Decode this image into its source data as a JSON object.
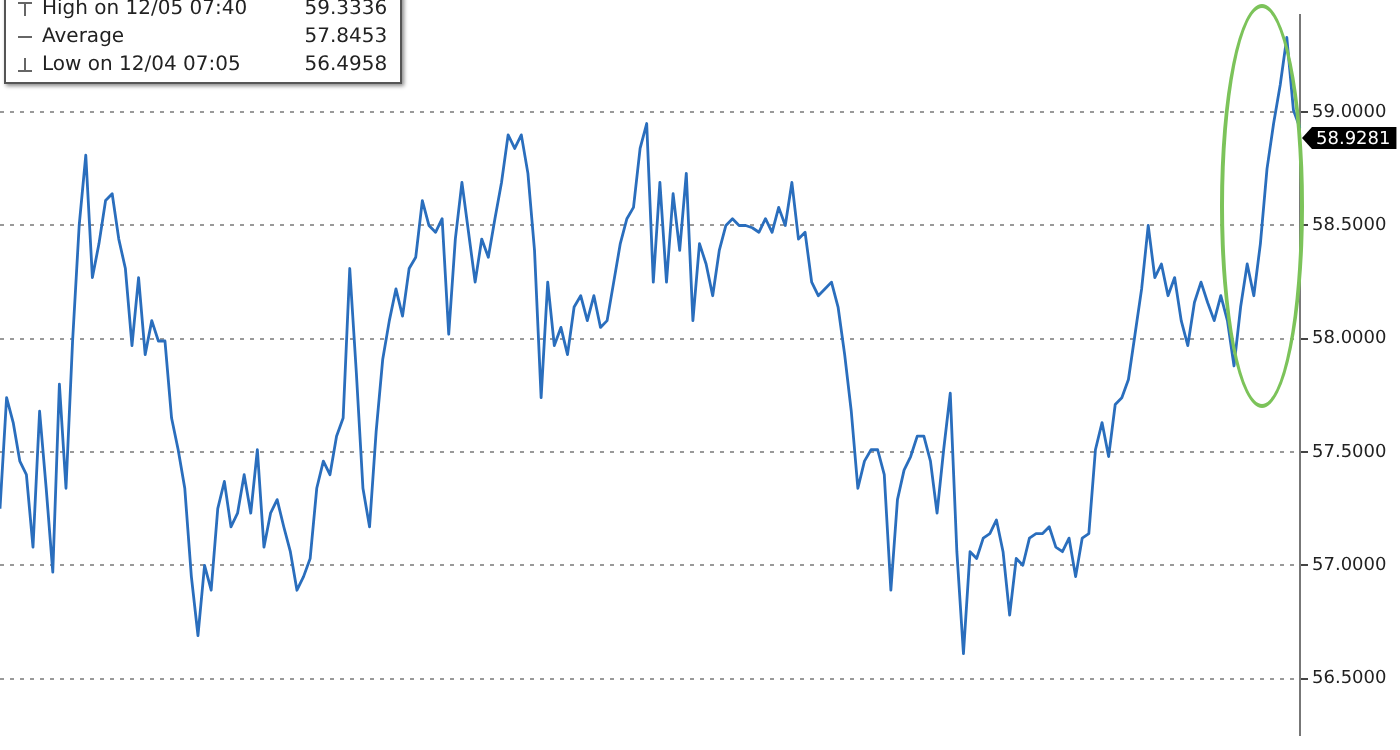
{
  "chart_data": {
    "type": "line",
    "categories": [
      null,
      null,
      null,
      null,
      null,
      null,
      null,
      null,
      null,
      null,
      null,
      null,
      null,
      null,
      null,
      null,
      null,
      null,
      null,
      null,
      null,
      null,
      null,
      null,
      null,
      null,
      null,
      null,
      null,
      null,
      null,
      null,
      null,
      null,
      null,
      null,
      null,
      null,
      null,
      null,
      null,
      null,
      null,
      null,
      null,
      null,
      null,
      null,
      null,
      null,
      null,
      null,
      null,
      null,
      null,
      null,
      null,
      null,
      null,
      null,
      null,
      null,
      null,
      null,
      null,
      null,
      null,
      null,
      null,
      null,
      null,
      null,
      null,
      null,
      null,
      null,
      null,
      null,
      null,
      null,
      null,
      null,
      null,
      null,
      null,
      null,
      null,
      null,
      null,
      null,
      null,
      null,
      null,
      null,
      null,
      null,
      null,
      null,
      null,
      null,
      null,
      null,
      null,
      null,
      null,
      null,
      null,
      null,
      null,
      null,
      null,
      null,
      null,
      null,
      null,
      null,
      null,
      null,
      null,
      null,
      null,
      null,
      null,
      null,
      null,
      null,
      null,
      null,
      null,
      null,
      null,
      null,
      null,
      null,
      null,
      null,
      null,
      null,
      null,
      null,
      null,
      null,
      null,
      null,
      null,
      null,
      null,
      null,
      null,
      null,
      null,
      null,
      null,
      null,
      null,
      null,
      null,
      null,
      null,
      null,
      null,
      null,
      null,
      null,
      null,
      null,
      null,
      null,
      null,
      null,
      null,
      null,
      null,
      null,
      null,
      null,
      null,
      null,
      null,
      null,
      null,
      null,
      null,
      null,
      null,
      null,
      null,
      null,
      null,
      null,
      null,
      null,
      null,
      null,
      null,
      null,
      null,
      null
    ],
    "series": [
      {
        "color": "#2a6ebd",
        "values": [
          57.25,
          57.74,
          57.63,
          57.46,
          57.4,
          57.08,
          57.68,
          57.34,
          56.97,
          57.8,
          57.34,
          57.99,
          58.5,
          58.81,
          58.27,
          58.42,
          58.61,
          58.64,
          58.44,
          58.31,
          57.97,
          58.27,
          57.93,
          58.08,
          57.99,
          57.99,
          57.65,
          57.51,
          57.34,
          56.95,
          56.69,
          57.0,
          56.89,
          57.25,
          57.37,
          57.17,
          57.23,
          57.4,
          57.23,
          57.51,
          57.08,
          57.23,
          57.29,
          57.17,
          57.06,
          56.89,
          56.95,
          57.03,
          57.34,
          57.46,
          57.4,
          57.57,
          57.65,
          58.31,
          57.85,
          57.34,
          57.17,
          57.59,
          57.91,
          58.08,
          58.22,
          58.1,
          58.31,
          58.36,
          58.61,
          58.5,
          58.47,
          58.53,
          58.02,
          58.44,
          58.69,
          58.47,
          58.25,
          58.44,
          58.36,
          58.53,
          58.69,
          58.9,
          58.84,
          58.9,
          58.73,
          58.39,
          57.74,
          58.25,
          57.97,
          58.05,
          57.93,
          58.14,
          58.19,
          58.08,
          58.19,
          58.05,
          58.08,
          58.25,
          58.42,
          58.53,
          58.58,
          58.84,
          58.95,
          58.25,
          58.69,
          58.25,
          58.64,
          58.39,
          58.73,
          58.08,
          58.42,
          58.33,
          58.19,
          58.39,
          58.5,
          58.53,
          58.5,
          58.5,
          58.49,
          58.47,
          58.53,
          58.47,
          58.58,
          58.5,
          58.69,
          58.44,
          58.47,
          58.25,
          58.19,
          58.22,
          58.25,
          58.14,
          57.93,
          57.68,
          57.34,
          57.46,
          57.51,
          57.51,
          57.4,
          56.89,
          57.29,
          57.42,
          57.48,
          57.57,
          57.57,
          57.46,
          57.23,
          57.51,
          57.76,
          57.06,
          56.61,
          57.06,
          57.03,
          57.12,
          57.14,
          57.2,
          57.06,
          56.78,
          57.03,
          57.0,
          57.12,
          57.14,
          57.14,
          57.17,
          57.08,
          57.06,
          57.12,
          56.95,
          57.12,
          57.14,
          57.51,
          57.63,
          57.48,
          57.71,
          57.74,
          57.82,
          58.02,
          58.22,
          58.5,
          58.27,
          58.33,
          58.19,
          58.27,
          58.08,
          57.97,
          58.16,
          58.25,
          58.16,
          58.08,
          58.19,
          58.08,
          57.88,
          58.14,
          58.33,
          58.19,
          58.42,
          58.75,
          58.95,
          59.12,
          59.33,
          59.01,
          58.93
        ]
      }
    ],
    "ylim": [
      56.25,
      59.43
    ],
    "yticks": [
      {
        "value": 56.5,
        "label": "56.5000"
      },
      {
        "value": 57,
        "label": "57.0000"
      },
      {
        "value": 57.5,
        "label": "57.5000"
      },
      {
        "value": 58,
        "label": "58.0000"
      },
      {
        "value": 58.5,
        "label": "58.5000"
      },
      {
        "value": 59,
        "label": "59.0000"
      }
    ],
    "grid": "y",
    "tick_labels": "y",
    "legend": false,
    "annotations": [
      "High on 12/05 07:40",
      "59.3336",
      "Average",
      "57.8453",
      "Low on 12/04 07:05",
      "56.4958",
      "58.9281"
    ]
  }
}
